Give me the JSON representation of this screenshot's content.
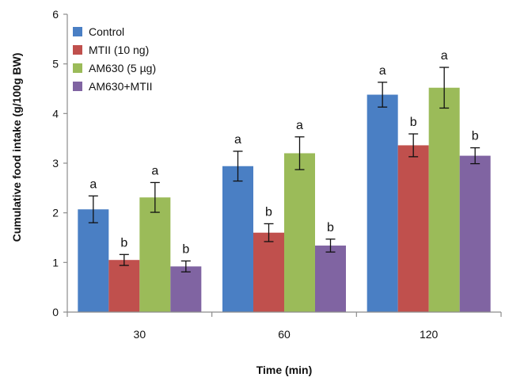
{
  "chart_data": {
    "type": "bar",
    "title": "",
    "xlabel": "Time (min)",
    "ylabel": "Cumulative food intake (g/100g BW)",
    "ylim": [
      0,
      6
    ],
    "yticks": [
      0,
      1,
      2,
      3,
      4,
      5,
      6
    ],
    "categories": [
      "30",
      "60",
      "120"
    ],
    "legend_position": "top-left",
    "series": [
      {
        "name": "Control",
        "color": "#4a7fc4",
        "values": [
          2.07,
          2.94,
          4.38
        ],
        "errors": [
          0.27,
          0.3,
          0.25
        ],
        "labels": [
          "a",
          "a",
          "a"
        ]
      },
      {
        "name": "MTII (10 ng)",
        "color": "#c0504d",
        "values": [
          1.05,
          1.6,
          3.36
        ],
        "errors": [
          0.11,
          0.18,
          0.23
        ],
        "labels": [
          "b",
          "b",
          "b"
        ]
      },
      {
        "name": "AM630 (5 µg)",
        "color": "#9bbb59",
        "values": [
          2.31,
          3.2,
          4.52
        ],
        "errors": [
          0.3,
          0.33,
          0.41
        ],
        "labels": [
          "a",
          "a",
          "a"
        ]
      },
      {
        "name": "AM630+MTII",
        "color": "#8064a2",
        "values": [
          0.92,
          1.34,
          3.15
        ],
        "errors": [
          0.11,
          0.13,
          0.16
        ],
        "labels": [
          "b",
          "b",
          "b"
        ]
      }
    ]
  }
}
